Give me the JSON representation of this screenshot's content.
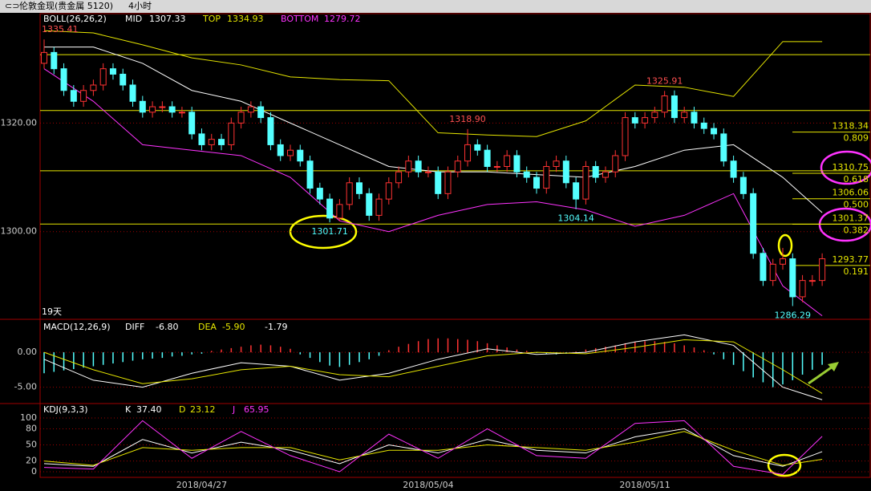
{
  "header": {
    "title": "伦敦金现(贵金属 5120)",
    "period": "4小时"
  },
  "chart_data": [
    {
      "type": "candlestick",
      "indicator": "BOLL(26,26,2)",
      "days": "19天",
      "ylim": [
        1284,
        1340
      ],
      "yticks": [
        {
          "value": 1320,
          "label": "1320.00"
        },
        {
          "value": 1300,
          "label": "1300.00"
        }
      ],
      "xticks": [
        {
          "value": 16,
          "label": "2018/04/27"
        },
        {
          "value": 39,
          "label": "2018/05/04"
        },
        {
          "value": 61,
          "label": "2018/05/11"
        }
      ],
      "up_color": "#ff3232",
      "down_color": "#54ffff",
      "open": [
        1331,
        1333,
        1330,
        1326,
        1324,
        1326,
        1327,
        1330,
        1329,
        1327,
        1324,
        1322,
        1323,
        1323,
        1322,
        1322,
        1318,
        1316,
        1317,
        1316,
        1320,
        1322,
        1323,
        1321,
        1316,
        1314,
        1315,
        1313,
        1308,
        1306,
        1302.5,
        1305,
        1309,
        1307,
        1303,
        1306,
        1309,
        1311,
        1313,
        1311,
        1311,
        1307,
        1311,
        1313,
        1316,
        1315,
        1312,
        1312,
        1314,
        1311,
        1310,
        1308,
        1312,
        1313,
        1309,
        1306,
        1312,
        1310,
        1311,
        1314,
        1321,
        1320,
        1321,
        1322,
        1325,
        1321,
        1322,
        1320,
        1319,
        1318,
        1313,
        1310,
        1307,
        1296,
        1291,
        1294,
        1295,
        1288,
        1291,
        1291
      ],
      "high": [
        1335.41,
        1334,
        1331,
        1327,
        1327,
        1328,
        1331,
        1331,
        1330,
        1328,
        1325,
        1324,
        1324,
        1324,
        1323,
        1323,
        1319,
        1318,
        1318,
        1321,
        1323,
        1324,
        1324,
        1322,
        1317,
        1316,
        1316,
        1314,
        1309,
        1307,
        1306,
        1310,
        1310,
        1308,
        1307,
        1310,
        1312,
        1314,
        1314,
        1312,
        1312,
        1312,
        1314,
        1318.9,
        1317,
        1316,
        1313,
        1315,
        1315,
        1312,
        1311,
        1313,
        1314,
        1314,
        1310,
        1313,
        1313,
        1312,
        1315,
        1322,
        1322,
        1322,
        1323,
        1325.91,
        1326,
        1323,
        1323,
        1321,
        1320,
        1319,
        1314,
        1311,
        1308,
        1297,
        1295,
        1297,
        1296,
        1292,
        1292,
        1296
      ],
      "low": [
        1330,
        1329,
        1325,
        1323,
        1323,
        1325,
        1326,
        1328,
        1326,
        1323,
        1321,
        1321,
        1322,
        1321,
        1321,
        1317,
        1315,
        1315,
        1315,
        1315,
        1319,
        1321,
        1320,
        1315,
        1313,
        1313,
        1312,
        1307,
        1305,
        1301.71,
        1302,
        1304,
        1306,
        1302,
        1302,
        1305,
        1308,
        1310,
        1310,
        1310,
        1306,
        1306,
        1310,
        1312,
        1314,
        1311,
        1311,
        1311,
        1310,
        1309,
        1307,
        1307,
        1311,
        1308,
        1304.14,
        1305,
        1309,
        1309,
        1310,
        1313,
        1319,
        1319,
        1320,
        1321,
        1320,
        1320,
        1319,
        1318,
        1317,
        1312,
        1309,
        1306,
        1295,
        1290,
        1290,
        1293,
        1286.29,
        1287,
        1290,
        1290
      ],
      "close": [
        1333,
        1330,
        1326,
        1324,
        1326,
        1327,
        1330,
        1329,
        1327,
        1324,
        1322,
        1323,
        1323,
        1322,
        1322,
        1318,
        1316,
        1317,
        1316,
        1320,
        1322,
        1323,
        1321,
        1316,
        1314,
        1315,
        1313,
        1308,
        1306,
        1302.5,
        1305,
        1309,
        1307,
        1303,
        1306,
        1309,
        1311,
        1313,
        1311,
        1311,
        1307,
        1311,
        1313,
        1316,
        1315,
        1312,
        1312,
        1314,
        1311,
        1310,
        1308,
        1312,
        1313,
        1309,
        1306,
        1312,
        1310,
        1311,
        1314,
        1321,
        1320,
        1321,
        1322,
        1325,
        1321,
        1322,
        1320,
        1319,
        1318,
        1313,
        1310,
        1307,
        1296,
        1291,
        1294,
        1295,
        1288,
        1291,
        1291,
        1295
      ],
      "band_x": [
        0,
        5,
        10,
        15,
        20,
        25,
        30,
        35,
        40,
        45,
        50,
        55,
        60,
        65,
        70,
        75,
        79
      ],
      "series": [
        {
          "name": "MID",
          "current": 1307.33,
          "color": "#ffffff",
          "values": [
            1334,
            1334,
            1331,
            1326,
            1324,
            1320,
            1316,
            1312,
            1311,
            1311,
            1310.5,
            1310,
            1312,
            1315,
            1316,
            1310,
            1303.5
          ]
        },
        {
          "name": "TOP",
          "current": 1334.93,
          "color": "#e6e600",
          "values": [
            1337,
            1336.6,
            1334.4,
            1332,
            1330.7,
            1328.5,
            1328,
            1327.8,
            1318.2,
            1317.8,
            1317.5,
            1320.4,
            1327,
            1326.6,
            1324.9,
            1335,
            1335
          ]
        },
        {
          "name": "BOTTOM",
          "current": 1279.72,
          "color": "#ff33ff",
          "values": [
            1330,
            1324,
            1316,
            1315,
            1314,
            1310,
            1302,
            1300,
            1303,
            1305,
            1305.5,
            1304,
            1301,
            1303,
            1307,
            1290,
            1284.5
          ]
        }
      ],
      "hlines": [
        1332.6,
        1322.3,
        1311.2,
        1301.4
      ],
      "fib": [
        {
          "price": 1318.34,
          "ratio": 0.809
        },
        {
          "price": 1310.75,
          "ratio": 0.618
        },
        {
          "price": 1306.06,
          "ratio": {
            "value": 0.5,
            "label": "0.500"
          }
        },
        {
          "price": 1301.37,
          "ratio": 0.382
        },
        {
          "price": 1293.77,
          "ratio": 0.191
        }
      ],
      "annotations": [
        {
          "index": 0,
          "value": 1335.41,
          "label": "1335.41"
        },
        {
          "index": 43,
          "value": 1318.9,
          "label": "1318.90"
        },
        {
          "index": 63,
          "value": 1325.91,
          "label": "1325.91"
        },
        {
          "index": 29,
          "value": 1301.71,
          "label": "1301.71"
        },
        {
          "index": 54,
          "value": 1304.14,
          "label": "1304.14"
        },
        {
          "index": 76,
          "value": 1286.29,
          "label": "1286.29"
        }
      ]
    },
    {
      "type": "macd",
      "indicator": "MACD(12,26,9)",
      "ylim": [
        -7,
        4.5
      ],
      "yticks": [
        {
          "value": 0,
          "label": "0.00"
        },
        {
          "value": -5,
          "label": "-5.00"
        }
      ],
      "histogram": {
        "current": -1.79,
        "up_color": "#ff3232",
        "down_color": "#54ffff",
        "values": [
          -3,
          -2.8,
          -2.6,
          -2.4,
          -2.2,
          -2,
          -1.8,
          -1.6,
          -1.4,
          -1.2,
          -1,
          -0.9,
          -0.8,
          -0.6,
          -0.5,
          -0.3,
          -0.2,
          0.2,
          0.4,
          0.6,
          0.8,
          1,
          1.1,
          1,
          0.8,
          0.5,
          -0.3,
          -0.8,
          -1.4,
          -1.9,
          -2.1,
          -1.8,
          -1.4,
          -1,
          -0.5,
          0.3,
          0.8,
          1.2,
          1.6,
          1.9,
          2,
          2,
          1.9,
          1.8,
          1.6,
          1.3,
          1,
          0.7,
          0.4,
          0.2,
          -0.1,
          -0.2,
          -0.3,
          -0.2,
          0.1,
          0.4,
          0.6,
          0.8,
          1,
          1.3,
          1.5,
          1.6,
          1.6,
          1.5,
          1.3,
          1,
          0.7,
          0.3,
          -0.3,
          -1,
          -1.8,
          -2.7,
          -3.6,
          -4.3,
          -5,
          -4.6,
          -4,
          -3.2,
          -2.5,
          -1.79
        ]
      },
      "band_x": [
        0,
        5,
        10,
        15,
        20,
        25,
        30,
        35,
        40,
        45,
        50,
        55,
        60,
        65,
        70,
        75,
        79
      ],
      "series": [
        {
          "name": "DIFF",
          "current": {
            "value": -6.8,
            "label": "-6.80"
          },
          "color": "#ffffff",
          "values": [
            -1,
            -4,
            -5,
            -3,
            -1.5,
            -2,
            -4,
            -3,
            -1,
            0.5,
            -0.3,
            0,
            1.5,
            2.5,
            1,
            -5,
            -6.8
          ]
        },
        {
          "name": "DEA",
          "current": {
            "value": -5.9,
            "label": "-5.90"
          },
          "color": "#e6e600",
          "values": [
            0,
            -2.5,
            -4.5,
            -3.8,
            -2.5,
            -2,
            -3.2,
            -3.5,
            -2,
            -0.5,
            0,
            -0.2,
            0.7,
            1.8,
            1.5,
            -2.5,
            -5.9
          ]
        }
      ]
    },
    {
      "type": "line",
      "indicator": "KDJ(9,3,3)",
      "ylim": [
        -12,
        124
      ],
      "yticks": [
        100,
        80,
        50,
        20,
        0
      ],
      "band_x": [
        0,
        5,
        10,
        15,
        20,
        25,
        30,
        35,
        40,
        45,
        50,
        55,
        60,
        65,
        70,
        75,
        79
      ],
      "series": [
        {
          "name": "K",
          "current": {
            "value": 37.4,
            "label": "37.40"
          },
          "color": "#ffffff",
          "values": [
            15,
            10,
            60,
            35,
            55,
            40,
            15,
            50,
            35,
            60,
            40,
            35,
            65,
            80,
            30,
            10,
            37.4
          ]
        },
        {
          "name": "D",
          "current": 23.12,
          "color": "#e6e600",
          "values": [
            20,
            12,
            45,
            40,
            45,
            45,
            22,
            40,
            40,
            50,
            45,
            40,
            55,
            75,
            40,
            12,
            23.12
          ]
        },
        {
          "name": "J",
          "current": 65.95,
          "color": "#ff33ff",
          "values": [
            8,
            5,
            95,
            25,
            75,
            30,
            0,
            70,
            25,
            80,
            30,
            25,
            90,
            95,
            10,
            -5,
            65.95
          ]
        }
      ]
    }
  ]
}
